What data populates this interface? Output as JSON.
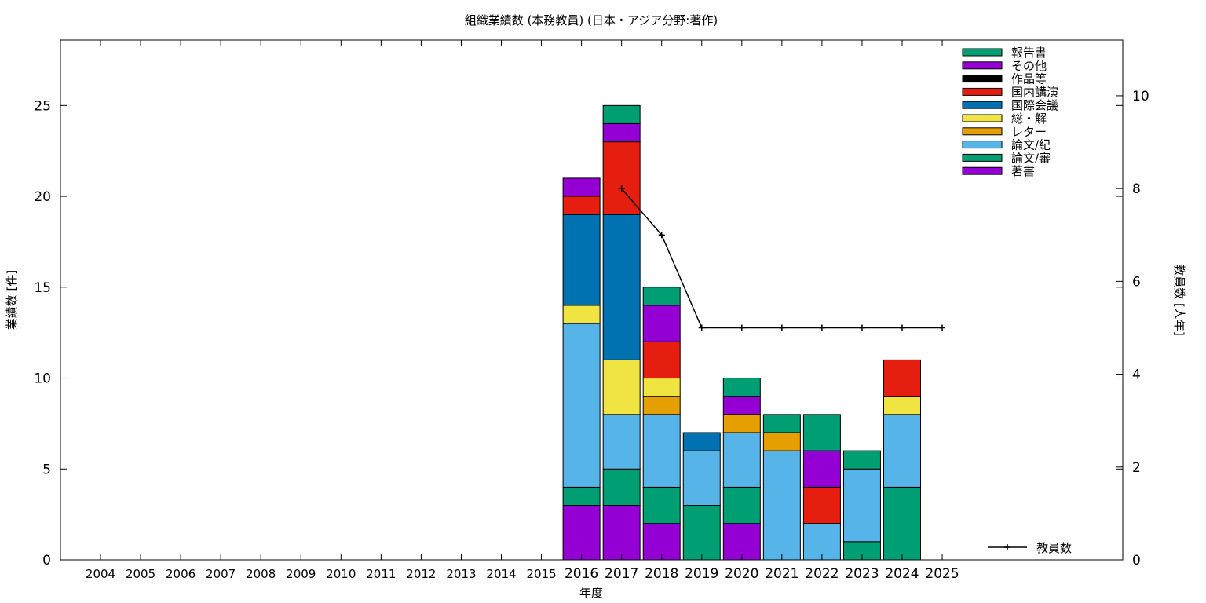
{
  "chart_data": {
    "type": "bar",
    "stacked": true,
    "title": "組織業績数 (本務教員) (日本・アジア分野:著作)",
    "xlabel": "年度",
    "ylabel": "業績数 [件]",
    "y2label": "教員数 [人年]",
    "categories": [
      "2004",
      "2005",
      "2006",
      "2007",
      "2008",
      "2009",
      "2010",
      "2011",
      "2012",
      "2013",
      "2014",
      "2015",
      "2016",
      "2017",
      "2018",
      "2019",
      "2020",
      "2021",
      "2022",
      "2023",
      "2024",
      "2025"
    ],
    "ylim": [
      0,
      28.6
    ],
    "yticks": [
      0,
      5,
      10,
      15,
      20,
      25
    ],
    "y2lim": [
      0,
      11.2
    ],
    "y2ticks": [
      0,
      2,
      4,
      6,
      8,
      10
    ],
    "legend_position": "top-right",
    "series": [
      {
        "name": "著書",
        "color": "#9400d3",
        "values": [
          0,
          0,
          0,
          0,
          0,
          0,
          0,
          0,
          0,
          0,
          0,
          0,
          3,
          3,
          2,
          0,
          2,
          0,
          0,
          0,
          0,
          0
        ]
      },
      {
        "name": "論文/審",
        "color": "#009e73",
        "values": [
          0,
          0,
          0,
          0,
          0,
          0,
          0,
          0,
          0,
          0,
          0,
          0,
          1,
          2,
          2,
          3,
          2,
          0,
          0,
          1,
          4,
          0
        ]
      },
      {
        "name": "論文/紀",
        "color": "#56b4e9",
        "values": [
          0,
          0,
          0,
          0,
          0,
          0,
          0,
          0,
          0,
          0,
          0,
          0,
          9,
          3,
          4,
          3,
          3,
          6,
          2,
          4,
          4,
          0
        ]
      },
      {
        "name": "レター",
        "color": "#e69f00",
        "values": [
          0,
          0,
          0,
          0,
          0,
          0,
          0,
          0,
          0,
          0,
          0,
          0,
          0,
          0,
          1,
          0,
          1,
          1,
          0,
          0,
          0,
          0
        ]
      },
      {
        "name": "総・解",
        "color": "#f0e442",
        "values": [
          0,
          0,
          0,
          0,
          0,
          0,
          0,
          0,
          0,
          0,
          0,
          0,
          1,
          3,
          1,
          0,
          0,
          0,
          0,
          0,
          1,
          0
        ]
      },
      {
        "name": "国際会議",
        "color": "#0072b2",
        "values": [
          0,
          0,
          0,
          0,
          0,
          0,
          0,
          0,
          0,
          0,
          0,
          0,
          5,
          8,
          0,
          1,
          0,
          0,
          0,
          0,
          0,
          0
        ]
      },
      {
        "name": "国内講演",
        "color": "#e51e10",
        "values": [
          0,
          0,
          0,
          0,
          0,
          0,
          0,
          0,
          0,
          0,
          0,
          0,
          1,
          4,
          2,
          0,
          0,
          0,
          2,
          0,
          2,
          0
        ]
      },
      {
        "name": "作品等",
        "color": "#000000",
        "values": [
          0,
          0,
          0,
          0,
          0,
          0,
          0,
          0,
          0,
          0,
          0,
          0,
          0,
          0,
          0,
          0,
          0,
          0,
          0,
          0,
          0,
          0
        ]
      },
      {
        "name": "その他",
        "color": "#9400d3",
        "values": [
          0,
          0,
          0,
          0,
          0,
          0,
          0,
          0,
          0,
          0,
          0,
          0,
          1,
          1,
          2,
          0,
          1,
          0,
          2,
          0,
          0,
          0
        ]
      },
      {
        "name": "報告書",
        "color": "#009e73",
        "values": [
          0,
          0,
          0,
          0,
          0,
          0,
          0,
          0,
          0,
          0,
          0,
          0,
          0,
          1,
          1,
          0,
          1,
          1,
          2,
          1,
          0,
          0
        ]
      }
    ],
    "line_series": {
      "name": "教員数",
      "color": "#000000",
      "axis": "y2",
      "values": [
        null,
        null,
        null,
        null,
        null,
        null,
        null,
        null,
        null,
        null,
        null,
        null,
        null,
        8,
        7,
        5,
        5,
        5,
        5,
        5,
        5,
        5
      ]
    }
  }
}
